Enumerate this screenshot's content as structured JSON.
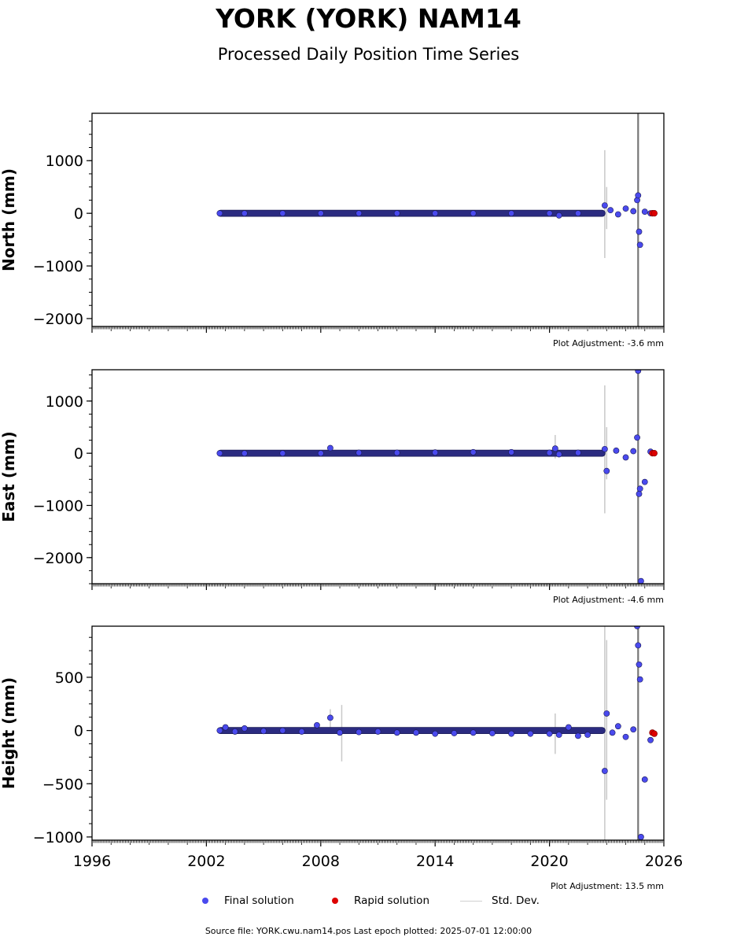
{
  "title": "YORK (YORK) NAM14",
  "subtitle": "Processed Daily Position Time Series",
  "legend": {
    "final": "Final solution",
    "rapid": "Rapid solution",
    "stddev": "Std. Dev."
  },
  "colors": {
    "final": "#4a4aee",
    "final_edge": "#1a1a55",
    "rapid": "#dd0000",
    "stddev": "#c8c8c8"
  },
  "footer": "Source file: YORK.cwu.nam14.pos  Last epoch plotted: 2025-07-01 12:00:00",
  "chart_data": [
    {
      "type": "scatter",
      "ylabel": "North (mm)",
      "ylim": [
        -2150,
        1900
      ],
      "yticks": [
        1000,
        0,
        -1000,
        -2000
      ],
      "ytick_labels": [
        "1000",
        "0",
        "−1000",
        "−2000"
      ],
      "xlim": [
        1996,
        2026
      ],
      "adjustment": "Plot Adjustment: -3.6 mm",
      "final_series": {
        "x": [
          2002.7,
          2004,
          2006,
          2008,
          2010,
          2012,
          2014,
          2016,
          2018,
          2020,
          2020.5,
          2021.5,
          2022.9,
          2023.2,
          2023.6,
          2024.0,
          2024.4,
          2024.6,
          2024.65,
          2024.7,
          2024.75,
          2025.0,
          2025.3
        ],
        "y": [
          0,
          0,
          0,
          0,
          0,
          0,
          0,
          0,
          0,
          0,
          -40,
          0,
          150,
          60,
          -20,
          90,
          40,
          250,
          340,
          -350,
          -600,
          30,
          0
        ]
      },
      "rapid_series": {
        "x": [
          2025.4,
          2025.5
        ],
        "y": [
          0,
          0
        ]
      },
      "stddev_bars": [
        {
          "x": 2022.9,
          "lo": -850,
          "hi": 1200
        },
        {
          "x": 2023.0,
          "lo": -300,
          "hi": 500
        },
        {
          "x": 2024.65,
          "lo": -2150,
          "hi": 1900
        }
      ]
    },
    {
      "type": "scatter",
      "ylabel": "East (mm)",
      "ylim": [
        -2500,
        1600
      ],
      "yticks": [
        1000,
        0,
        -1000,
        -2000
      ],
      "ytick_labels": [
        "1000",
        "0",
        "−1000",
        "−2000"
      ],
      "xlim": [
        1996,
        2026
      ],
      "adjustment": "Plot Adjustment: -4.6 mm",
      "final_series": {
        "x": [
          2002.7,
          2004,
          2006,
          2008,
          2008.5,
          2010,
          2012,
          2014,
          2016,
          2018,
          2020,
          2020.3,
          2020.5,
          2021.5,
          2022.9,
          2023.0,
          2023.5,
          2024.0,
          2024.4,
          2024.6,
          2024.65,
          2024.7,
          2024.75,
          2024.8,
          2025.0,
          2025.3
        ],
        "y": [
          0,
          0,
          0,
          0,
          100,
          10,
          10,
          15,
          20,
          20,
          10,
          90,
          -20,
          10,
          80,
          -340,
          50,
          -80,
          40,
          300,
          1580,
          -780,
          -680,
          -2450,
          -550,
          30
        ]
      },
      "rapid_series": {
        "x": [
          2025.4,
          2025.5
        ],
        "y": [
          0,
          0
        ]
      },
      "stddev_bars": [
        {
          "x": 2020.3,
          "lo": -100,
          "hi": 350
        },
        {
          "x": 2022.9,
          "lo": -1150,
          "hi": 1300
        },
        {
          "x": 2023.0,
          "lo": -500,
          "hi": 500
        },
        {
          "x": 2024.65,
          "lo": -2500,
          "hi": 1600
        }
      ]
    },
    {
      "type": "scatter",
      "ylabel": "Height (mm)",
      "ylim": [
        -1030,
        980
      ],
      "yticks": [
        500,
        0,
        -500,
        -1000
      ],
      "ytick_labels": [
        "500",
        "0",
        "−500",
        "−1000"
      ],
      "xlim": [
        1996,
        2026
      ],
      "xticks": [
        1996,
        2002,
        2008,
        2014,
        2020,
        2026
      ],
      "xtick_labels": [
        "1996",
        "2002",
        "2008",
        "2014",
        "2020",
        "2026"
      ],
      "adjustment": "Plot Adjustment: 13.5 mm",
      "final_series": {
        "x": [
          2002.7,
          2003,
          2003.5,
          2004,
          2005,
          2006,
          2007,
          2007.8,
          2008.5,
          2009,
          2010,
          2011,
          2012,
          2013,
          2014,
          2015,
          2016,
          2017,
          2018,
          2019,
          2020,
          2020.5,
          2021,
          2021.5,
          2022,
          2022.9,
          2023.0,
          2023.3,
          2023.6,
          2024.0,
          2024.4,
          2024.6,
          2024.65,
          2024.7,
          2024.75,
          2024.8,
          2025.0,
          2025.3
        ],
        "y": [
          0,
          30,
          -10,
          20,
          -5,
          0,
          -10,
          50,
          120,
          -20,
          -15,
          -10,
          -20,
          -20,
          -30,
          -25,
          -20,
          -25,
          -30,
          -30,
          -30,
          -40,
          30,
          -50,
          -40,
          -380,
          160,
          -20,
          40,
          -60,
          10,
          980,
          800,
          620,
          480,
          -1000,
          -460,
          -90
        ]
      },
      "rapid_series": {
        "x": [
          2025.4,
          2025.5
        ],
        "y": [
          -20,
          -30
        ]
      },
      "stddev_bars": [
        {
          "x": 2008.5,
          "lo": 0,
          "hi": 200
        },
        {
          "x": 2009.1,
          "lo": -290,
          "hi": 240
        },
        {
          "x": 2020.3,
          "lo": -220,
          "hi": 160
        },
        {
          "x": 2022.9,
          "lo": -1030,
          "hi": 980
        },
        {
          "x": 2023.0,
          "lo": -650,
          "hi": 850
        },
        {
          "x": 2024.65,
          "lo": -1030,
          "hi": 980
        }
      ]
    }
  ]
}
